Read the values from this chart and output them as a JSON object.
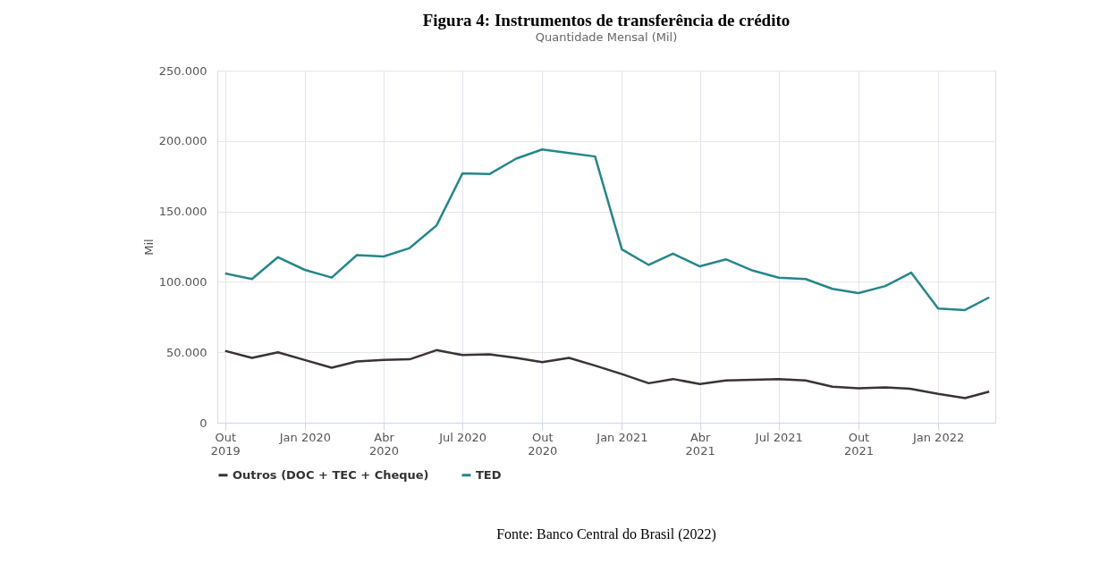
{
  "chart_data": {
    "type": "line",
    "title": "Figura 4: Instrumentos de transferência de crédito",
    "subtitle": "Quantidade Mensal (Mil)",
    "ylabel": "Mil",
    "x": [
      "2019-10",
      "2019-11",
      "2019-12",
      "2020-01",
      "2020-02",
      "2020-03",
      "2020-04",
      "2020-05",
      "2020-06",
      "2020-07",
      "2020-08",
      "2020-09",
      "2020-10",
      "2020-11",
      "2020-12",
      "2021-01",
      "2021-02",
      "2021-03",
      "2021-04",
      "2021-05",
      "2021-06",
      "2021-07",
      "2021-08",
      "2021-09",
      "2021-10",
      "2021-11",
      "2021-12",
      "2022-01",
      "2022-02",
      "2022-03"
    ],
    "series": [
      {
        "name": "Outros (DOC + TEC + Cheque)",
        "color": "#3b3236",
        "values": [
          51000,
          46000,
          50000,
          44500,
          39000,
          43500,
          44500,
          45000,
          51500,
          48000,
          48500,
          46000,
          43000,
          46000,
          40500,
          34500,
          28000,
          31000,
          27500,
          30000,
          30500,
          31000,
          30000,
          25500,
          24500,
          25000,
          24000,
          20500,
          17500,
          22000
        ]
      },
      {
        "name": "TED",
        "color": "#25868b",
        "values": [
          106000,
          102000,
          117500,
          108500,
          103000,
          119000,
          118000,
          124000,
          140000,
          177000,
          176500,
          187500,
          194000,
          191500,
          189000,
          123000,
          112000,
          120000,
          111000,
          116000,
          108000,
          103000,
          102000,
          95000,
          92000,
          97000,
          106500,
          81000,
          80000,
          89000
        ]
      }
    ],
    "xlim": [
      "2019-09-22",
      "2022-03-08"
    ],
    "xticks": [
      {
        "value": "2019-10",
        "label": "Out\n2019"
      },
      {
        "value": "2020-01",
        "label": "Jan 2020"
      },
      {
        "value": "2020-04",
        "label": "Abr\n2020"
      },
      {
        "value": "2020-07",
        "label": "Jul 2020"
      },
      {
        "value": "2020-10",
        "label": "Out\n2020"
      },
      {
        "value": "2021-01",
        "label": "Jan 2021"
      },
      {
        "value": "2021-04",
        "label": "Abr\n2021"
      },
      {
        "value": "2021-07",
        "label": "Jul 2021"
      },
      {
        "value": "2021-10",
        "label": "Out\n2021"
      },
      {
        "value": "2022-01",
        "label": "Jan 2022"
      }
    ],
    "ylim": [
      0,
      250000
    ],
    "yticks": [
      {
        "value": 0,
        "label": "0"
      },
      {
        "value": 50000,
        "label": "50.000"
      },
      {
        "value": 100000,
        "label": "100.000"
      },
      {
        "value": 150000,
        "label": "150.000"
      },
      {
        "value": 200000,
        "label": "200.000"
      },
      {
        "value": 250000,
        "label": "250.000"
      }
    ],
    "grid": true,
    "legend": "bottom",
    "marker": "none",
    "line_style": "solid",
    "annotations": [
      "Fonte: Banco Central do Brasil (2022)"
    ]
  }
}
